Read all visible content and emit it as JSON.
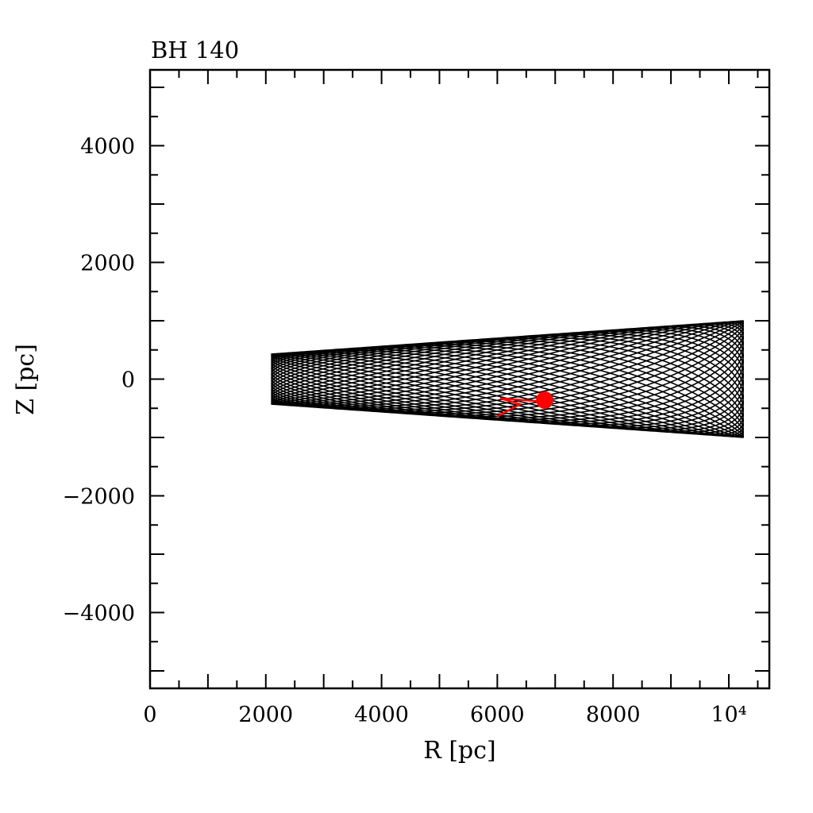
{
  "chart_data": {
    "type": "line",
    "title": "BH 140",
    "xlabel": "R [pc]",
    "ylabel": "Z [pc]",
    "xlim": [
      0,
      10700
    ],
    "ylim": [
      -5300,
      5300
    ],
    "x_ticks": [
      {
        "value": 0,
        "label": "0"
      },
      {
        "value": 2000,
        "label": "2000"
      },
      {
        "value": 4000,
        "label": "4000"
      },
      {
        "value": 6000,
        "label": "6000"
      },
      {
        "value": 8000,
        "label": "8000"
      },
      {
        "value": 10000,
        "label": "10⁴"
      }
    ],
    "y_ticks": [
      {
        "value": -4000,
        "label": "−4000"
      },
      {
        "value": -2000,
        "label": "−2000"
      },
      {
        "value": 0,
        "label": "0"
      },
      {
        "value": 2000,
        "label": "2000"
      },
      {
        "value": 4000,
        "label": "4000"
      }
    ],
    "grid": false,
    "series": [
      {
        "color": "#000000",
        "orbit": {
          "r_min": 2100,
          "r_max": 10250,
          "z_at_r_min": 430,
          "z_at_r_max": 1000,
          "radial_cycles": 26,
          "vertical_cycles": 35
        }
      },
      {
        "color": "#ff0000",
        "segment": [
          {
            "x": 6000,
            "y": -640
          },
          {
            "x": 6400,
            "y": -430
          },
          {
            "x": 6050,
            "y": -330
          },
          {
            "x": 6700,
            "y": -380
          }
        ],
        "marker": {
          "x": 6820,
          "y": -360
        }
      }
    ]
  }
}
